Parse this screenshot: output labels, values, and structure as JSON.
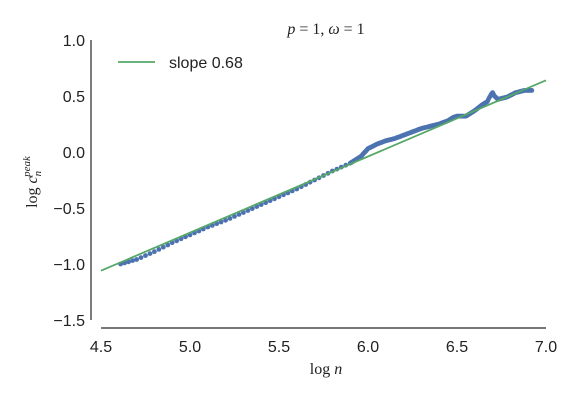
{
  "chart_data": {
    "type": "scatter",
    "title": "p = 1, ω = 1",
    "xlabel": "log n",
    "ylabel": "log c_n^peak",
    "xlim": [
      4.5,
      7.0
    ],
    "ylim": [
      -1.5,
      1.0
    ],
    "xticks": [
      4.5,
      5.0,
      5.5,
      6.0,
      6.5,
      7.0
    ],
    "yticks": [
      -1.5,
      -1.0,
      -0.5,
      0.0,
      0.5,
      1.0
    ],
    "xtick_labels": [
      "4.5",
      "5.0",
      "5.5",
      "6.0",
      "6.5",
      "7.0"
    ],
    "ytick_labels": [
      "−1.5",
      "−1.0",
      "−0.5",
      "0.0",
      "0.5",
      "1.0"
    ],
    "grid": false,
    "legend_position": "top-left",
    "series": [
      {
        "kind": "points",
        "color": "#4c72b0",
        "anchors": [
          [
            4.61,
            -1.0
          ],
          [
            4.7,
            -0.96
          ],
          [
            4.8,
            -0.89
          ],
          [
            4.9,
            -0.81
          ],
          [
            5.0,
            -0.74
          ],
          [
            5.1,
            -0.67
          ],
          [
            5.2,
            -0.61
          ],
          [
            5.3,
            -0.54
          ],
          [
            5.4,
            -0.47
          ],
          [
            5.5,
            -0.4
          ],
          [
            5.6,
            -0.33
          ],
          [
            5.7,
            -0.25
          ],
          [
            5.8,
            -0.17
          ],
          [
            5.9,
            -0.1
          ],
          [
            5.96,
            -0.04
          ],
          [
            6.0,
            0.03
          ],
          [
            6.05,
            0.07
          ],
          [
            6.1,
            0.1
          ],
          [
            6.15,
            0.12
          ],
          [
            6.2,
            0.15
          ],
          [
            6.25,
            0.18
          ],
          [
            6.3,
            0.21
          ],
          [
            6.35,
            0.23
          ],
          [
            6.4,
            0.25
          ],
          [
            6.45,
            0.28
          ],
          [
            6.48,
            0.31
          ],
          [
            6.5,
            0.32
          ],
          [
            6.55,
            0.32
          ],
          [
            6.6,
            0.37
          ],
          [
            6.64,
            0.42
          ],
          [
            6.67,
            0.45
          ],
          [
            6.69,
            0.51
          ],
          [
            6.7,
            0.53
          ],
          [
            6.71,
            0.5
          ],
          [
            6.73,
            0.47
          ],
          [
            6.78,
            0.49
          ],
          [
            6.83,
            0.53
          ],
          [
            6.88,
            0.55
          ],
          [
            6.92,
            0.55
          ]
        ]
      },
      {
        "kind": "line",
        "name": "slope 0.68",
        "color": "#55a868",
        "x": [
          4.5,
          7.0
        ],
        "y": [
          -1.06,
          0.64
        ]
      }
    ]
  }
}
